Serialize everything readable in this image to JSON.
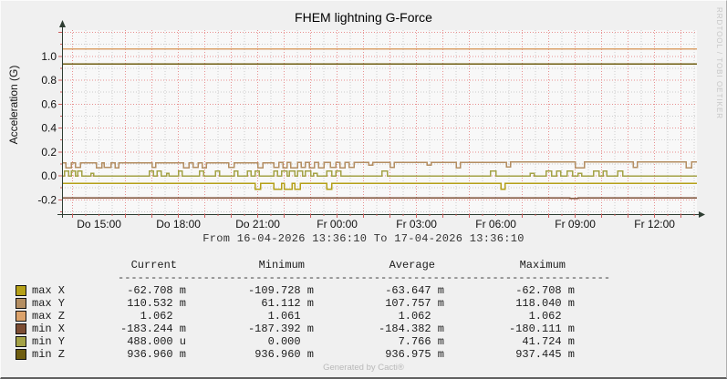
{
  "graph": {
    "period_label": "From 16-04-2026 13:36:10 To 17-04-2026 13:36:10",
    "watermark_vertical": "RRDTOOL / TOBI OETIKER",
    "generated_by": "Generated by Cacti®"
  },
  "chart_data": {
    "type": "line",
    "title": "FHEM lightning G-Force",
    "ylabel": "Acceleration (G)",
    "x_unit": "hours_since_start",
    "x_range": [
      0,
      24
    ],
    "ylim": [
      -0.32,
      1.22
    ],
    "grid": {
      "minor_x_hours": 0.5,
      "major_x_hours": 1.0,
      "first_major_offset_hours": 0.4,
      "minor_y": 0.1,
      "major_y": 0.2,
      "minor_color": "#cccccc",
      "major_color": "#e89090"
    },
    "x_ticks": [
      {
        "t": 1.4,
        "label": "Do 15:00"
      },
      {
        "t": 4.4,
        "label": "Do 18:00"
      },
      {
        "t": 7.4,
        "label": "Do 21:00"
      },
      {
        "t": 10.4,
        "label": "Fr 00:00"
      },
      {
        "t": 13.4,
        "label": "Fr 03:00"
      },
      {
        "t": 16.4,
        "label": "Fr 06:00"
      },
      {
        "t": 19.4,
        "label": "Fr 09:00"
      },
      {
        "t": 22.4,
        "label": "Fr 12:00"
      }
    ],
    "y_ticks": [
      {
        "v": 1.0,
        "label": "1.0"
      },
      {
        "v": 0.8,
        "label": "0.8"
      },
      {
        "v": 0.6,
        "label": "0.6"
      },
      {
        "v": 0.4,
        "label": "0.4"
      },
      {
        "v": 0.2,
        "label": "0.2"
      },
      {
        "v": 0.0,
        "label": "0.0"
      },
      {
        "v": -0.2,
        "label": "-0.2"
      }
    ],
    "series": [
      {
        "name": "max Z",
        "color": "#dba26b",
        "points": [
          [
            0,
            1.062
          ]
        ]
      },
      {
        "name": "min Z",
        "color": "#6e5d10",
        "points": [
          [
            0,
            0.937
          ]
        ]
      },
      {
        "name": "max Y",
        "color": "#b48e62",
        "points": [
          [
            0,
            0.108
          ],
          [
            0.15,
            0.068
          ],
          [
            0.35,
            0.108
          ],
          [
            0.5,
            0.07
          ],
          [
            0.7,
            0.108
          ],
          [
            1.3,
            0.068
          ],
          [
            1.5,
            0.108
          ],
          [
            1.6,
            0.07
          ],
          [
            1.85,
            0.108
          ],
          [
            2.0,
            0.068
          ],
          [
            2.15,
            0.108
          ],
          [
            3.4,
            0.07
          ],
          [
            3.55,
            0.108
          ],
          [
            4.6,
            0.068
          ],
          [
            4.8,
            0.108
          ],
          [
            4.95,
            0.07
          ],
          [
            5.15,
            0.108
          ],
          [
            5.3,
            0.068
          ],
          [
            5.45,
            0.108
          ],
          [
            6.3,
            0.07
          ],
          [
            6.5,
            0.108
          ],
          [
            7.4,
            0.068
          ],
          [
            7.6,
            0.108
          ],
          [
            8.0,
            0.07
          ],
          [
            8.2,
            0.112
          ],
          [
            8.35,
            0.068
          ],
          [
            8.5,
            0.112
          ],
          [
            8.65,
            0.068
          ],
          [
            8.9,
            0.112
          ],
          [
            9.05,
            0.07
          ],
          [
            9.2,
            0.112
          ],
          [
            9.35,
            0.068
          ],
          [
            9.55,
            0.112
          ],
          [
            9.7,
            0.068
          ],
          [
            9.9,
            0.112
          ],
          [
            10.15,
            0.07
          ],
          [
            10.35,
            0.112
          ],
          [
            10.5,
            0.068
          ],
          [
            10.7,
            0.112
          ],
          [
            10.85,
            0.07
          ],
          [
            11.05,
            0.112
          ],
          [
            11.6,
            0.09
          ],
          [
            11.75,
            0.112
          ],
          [
            12.4,
            0.07
          ],
          [
            12.55,
            0.112
          ],
          [
            13.8,
            0.09
          ],
          [
            13.95,
            0.112
          ],
          [
            14.9,
            0.068
          ],
          [
            15.05,
            0.112
          ],
          [
            16.8,
            0.075
          ],
          [
            16.95,
            0.115
          ],
          [
            19.4,
            0.068
          ],
          [
            19.75,
            0.115
          ],
          [
            21.6,
            0.07
          ],
          [
            21.75,
            0.115
          ],
          [
            23.6,
            0.068
          ],
          [
            23.8,
            0.115
          ]
        ]
      },
      {
        "name": "min Y",
        "color": "#a4a246",
        "points": [
          [
            0,
            0.0
          ],
          [
            0.1,
            0.042
          ],
          [
            0.25,
            0.0
          ],
          [
            0.35,
            0.042
          ],
          [
            0.5,
            0.0
          ],
          [
            0.6,
            0.042
          ],
          [
            0.75,
            0.0
          ],
          [
            1.1,
            0.02
          ],
          [
            1.2,
            0.0
          ],
          [
            3.3,
            0.042
          ],
          [
            3.45,
            0.0
          ],
          [
            3.6,
            0.042
          ],
          [
            3.75,
            0.0
          ],
          [
            3.95,
            0.02
          ],
          [
            4.05,
            0.0
          ],
          [
            4.4,
            0.042
          ],
          [
            4.55,
            0.0
          ],
          [
            5.2,
            0.042
          ],
          [
            5.35,
            0.0
          ],
          [
            5.8,
            0.042
          ],
          [
            5.95,
            0.0
          ],
          [
            6.5,
            0.042
          ],
          [
            6.65,
            0.0
          ],
          [
            7.0,
            0.042
          ],
          [
            7.15,
            0.0
          ],
          [
            7.3,
            0.042
          ],
          [
            7.45,
            0.0
          ],
          [
            8.0,
            0.042
          ],
          [
            8.15,
            0.0
          ],
          [
            8.3,
            0.042
          ],
          [
            8.5,
            0.0
          ],
          [
            8.6,
            0.042
          ],
          [
            8.8,
            0.0
          ],
          [
            8.9,
            0.042
          ],
          [
            9.1,
            0.0
          ],
          [
            9.2,
            0.042
          ],
          [
            9.4,
            0.0
          ],
          [
            9.5,
            0.02
          ],
          [
            9.65,
            0.0
          ],
          [
            10.0,
            0.042
          ],
          [
            10.2,
            0.0
          ],
          [
            10.35,
            0.042
          ],
          [
            10.55,
            0.0
          ],
          [
            12.1,
            0.042
          ],
          [
            12.3,
            0.0
          ],
          [
            16.2,
            0.042
          ],
          [
            16.4,
            0.0
          ],
          [
            17.7,
            0.02
          ],
          [
            17.85,
            0.0
          ],
          [
            18.3,
            0.042
          ],
          [
            18.5,
            0.0
          ],
          [
            18.7,
            0.042
          ],
          [
            18.85,
            0.0
          ],
          [
            19.1,
            0.042
          ],
          [
            19.3,
            0.0
          ],
          [
            19.5,
            0.02
          ],
          [
            19.65,
            0.0
          ],
          [
            20.1,
            0.042
          ],
          [
            20.3,
            0.0
          ],
          [
            20.45,
            0.042
          ],
          [
            20.6,
            0.0
          ],
          [
            21.0,
            0.042
          ],
          [
            21.2,
            0.0
          ]
        ]
      },
      {
        "name": "max X",
        "color": "#b5a018",
        "points": [
          [
            0,
            -0.063
          ],
          [
            7.3,
            -0.11
          ],
          [
            7.5,
            -0.063
          ],
          [
            8.0,
            -0.11
          ],
          [
            8.3,
            -0.063
          ],
          [
            8.4,
            -0.11
          ],
          [
            8.7,
            -0.063
          ],
          [
            8.8,
            -0.11
          ],
          [
            9.0,
            -0.063
          ],
          [
            10.0,
            -0.11
          ],
          [
            10.2,
            -0.063
          ],
          [
            16.6,
            -0.11
          ],
          [
            16.75,
            -0.063
          ]
        ]
      },
      {
        "name": "min X",
        "color": "#7c4d33",
        "points": [
          [
            0,
            -0.183
          ],
          [
            7.4,
            -0.186
          ],
          [
            7.6,
            -0.183
          ],
          [
            16.6,
            -0.186
          ],
          [
            16.9,
            -0.183
          ],
          [
            17.3,
            -0.186
          ],
          [
            17.6,
            -0.183
          ],
          [
            19.2,
            -0.187
          ],
          [
            19.5,
            -0.183
          ]
        ]
      }
    ]
  },
  "legend": {
    "columns": [
      "Current",
      "Minimum",
      "Average",
      "Maximum"
    ],
    "separator": "---------------------------------------------------------------------------",
    "rows": [
      {
        "label": "max X",
        "color": "#b5a018",
        "values": [
          "-62.708 m",
          "-109.728 m",
          "-63.647 m",
          "-62.708 m"
        ]
      },
      {
        "label": "max Y",
        "color": "#b48e62",
        "values": [
          "110.532 m",
          "61.112 m",
          "107.757 m",
          "118.040 m"
        ]
      },
      {
        "label": "max Z",
        "color": "#dba26b",
        "values": [
          "1.062  ",
          "1.061  ",
          "1.062  ",
          "1.062  "
        ]
      },
      {
        "label": "min X",
        "color": "#7c4d33",
        "values": [
          "-183.244 m",
          "-187.392 m",
          "-184.382 m",
          "-180.111 m"
        ]
      },
      {
        "label": "min Y",
        "color": "#a4a246",
        "values": [
          "488.000 u",
          "0.000  ",
          "7.766 m",
          "41.724 m"
        ]
      },
      {
        "label": "min Z",
        "color": "#6e5d10",
        "values": [
          "936.960 m",
          "936.960 m",
          "936.975 m",
          "937.445 m"
        ]
      }
    ]
  }
}
